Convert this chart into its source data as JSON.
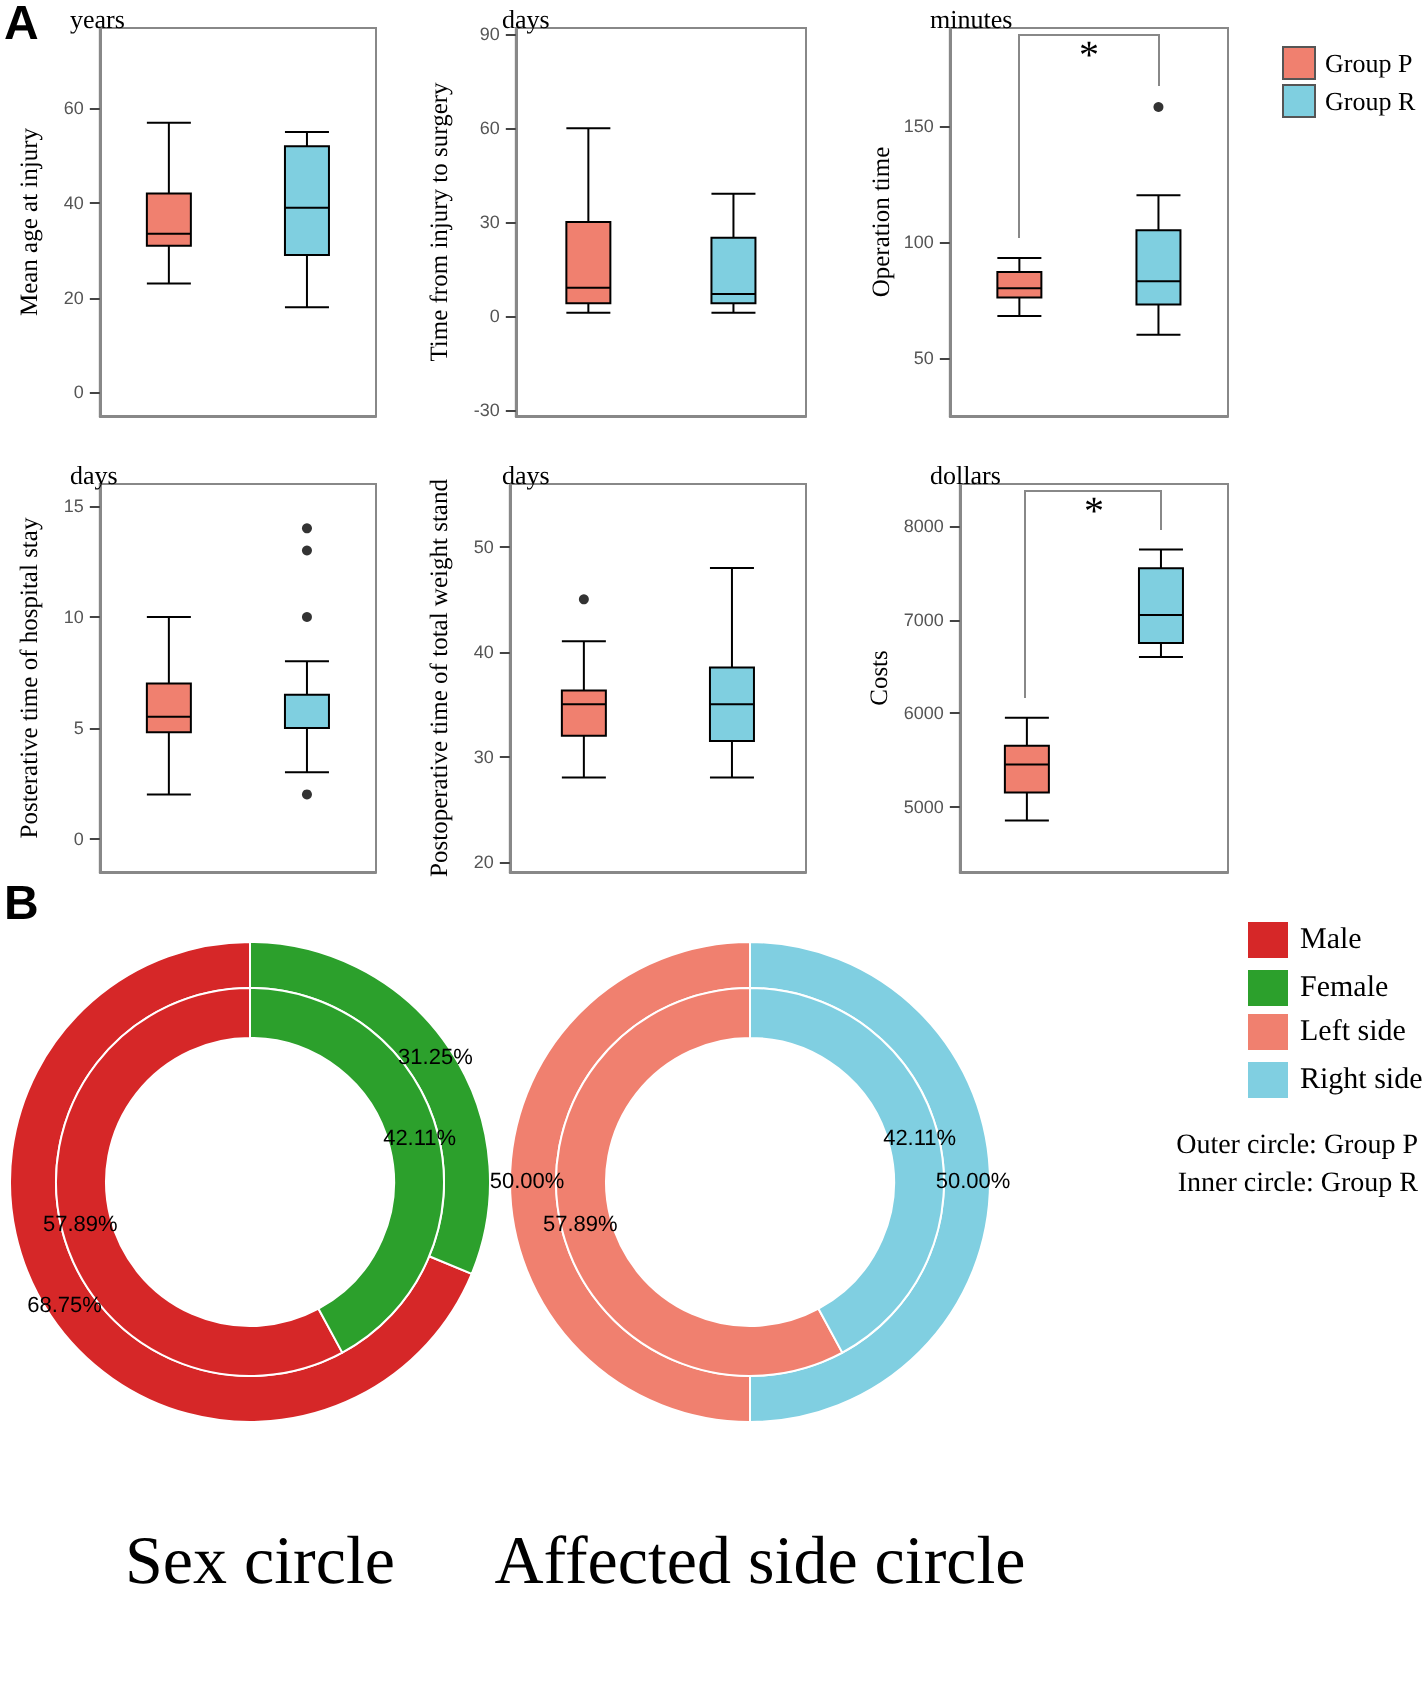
{
  "chart_data": [
    {
      "type": "box",
      "title": "years",
      "ylabel": "Mean age at injury",
      "categories": [
        null,
        null
      ],
      "ylim": [
        -5,
        77
      ],
      "yticks": [
        0,
        20,
        40,
        60
      ],
      "series": [
        {
          "color": "#f0806f",
          "boxes": [
            {
              "low": 23,
              "q1": 31,
              "median": 33.5,
              "q3": 42,
              "high": 57
            },
            null
          ]
        },
        {
          "color": "#7fcfe0",
          "boxes": [
            null,
            {
              "low": 18,
              "q1": 29,
              "median": 39,
              "q3": 52,
              "high": 55
            }
          ]
        }
      ]
    },
    {
      "type": "box",
      "title": "days",
      "ylabel": "Time from injury to surgery",
      "categories": [
        null,
        null
      ],
      "ylim": [
        -32,
        92
      ],
      "yticks": [
        -30,
        0,
        30,
        60,
        90
      ],
      "series": [
        {
          "color": "#f0806f",
          "boxes": [
            {
              "low": 1,
              "q1": 4,
              "median": 9,
              "q3": 30,
              "high": 60
            },
            null
          ]
        },
        {
          "color": "#7fcfe0",
          "boxes": [
            null,
            {
              "low": 1,
              "q1": 4,
              "median": 7,
              "q3": 25,
              "high": 39
            }
          ]
        }
      ]
    },
    {
      "type": "box",
      "title": "minutes",
      "ylabel": "Operation time",
      "categories": [
        null,
        null
      ],
      "ylim": [
        25,
        192
      ],
      "yticks": [
        50,
        100,
        150
      ],
      "legend": "right",
      "annotations": [
        "*"
      ],
      "series": [
        {
          "name": "Group P",
          "color": "#f0806f",
          "boxes": [
            {
              "low": 68,
              "q1": 76,
              "median": 80,
              "q3": 87,
              "high": 93
            },
            null
          ]
        },
        {
          "name": "Group R",
          "color": "#7fcfe0",
          "boxes": [
            null,
            {
              "low": 60,
              "q1": 73,
              "median": 83,
              "q3": 105,
              "high": 120,
              "outliers": [
                158
              ]
            }
          ]
        }
      ]
    },
    {
      "type": "box",
      "title": "days",
      "ylabel": "Posterative time of hospital stay",
      "categories": [
        null,
        null
      ],
      "ylim": [
        -1.5,
        16
      ],
      "yticks": [
        0,
        5,
        10,
        15
      ],
      "series": [
        {
          "color": "#f0806f",
          "boxes": [
            {
              "low": 2,
              "q1": 4.8,
              "median": 5.5,
              "q3": 7,
              "high": 10
            },
            null
          ]
        },
        {
          "color": "#7fcfe0",
          "boxes": [
            null,
            {
              "low": 3,
              "q1": 5,
              "median": 5,
              "q3": 6.5,
              "high": 8,
              "outliers": [
                2,
                10,
                13,
                14
              ]
            }
          ]
        }
      ]
    },
    {
      "type": "box",
      "title": "days",
      "ylabel": "Postoperative time of total weight stand",
      "categories": [
        null,
        null
      ],
      "ylim": [
        19,
        56
      ],
      "yticks": [
        20,
        30,
        40,
        50
      ],
      "series": [
        {
          "color": "#f0806f",
          "boxes": [
            {
              "low": 28,
              "q1": 32,
              "median": 35,
              "q3": 36.3,
              "high": 41,
              "outliers": [
                45
              ]
            },
            null
          ]
        },
        {
          "color": "#7fcfe0",
          "boxes": [
            null,
            {
              "low": 28,
              "q1": 31.5,
              "median": 35,
              "q3": 38.5,
              "high": 48
            }
          ]
        }
      ]
    },
    {
      "type": "box",
      "title": "dollars",
      "ylabel": "Costs",
      "categories": [
        null,
        null
      ],
      "ylim": [
        4300,
        8450
      ],
      "yticks": [
        5000,
        6000,
        7000,
        8000
      ],
      "annotations": [
        "*"
      ],
      "series": [
        {
          "color": "#f0806f",
          "boxes": [
            {
              "low": 4850,
              "q1": 5150,
              "median": 5450,
              "q3": 5650,
              "high": 5950
            },
            null
          ]
        },
        {
          "color": "#7fcfe0",
          "boxes": [
            null,
            {
              "low": 6600,
              "q1": 6750,
              "median": 7050,
              "q3": 7550,
              "high": 7750
            }
          ]
        }
      ]
    },
    {
      "type": "donut",
      "title": "Sex circle",
      "categories": [
        "Male",
        "Female"
      ],
      "colors": [
        "#d62728",
        "#2ca02c"
      ],
      "legend": "right",
      "annotations": [
        "A",
        "B"
      ],
      "series": [
        {
          "values": [
            68.75,
            31.25
          ],
          "value_labels": [
            "68.75%",
            "31.25%"
          ]
        },
        {
          "values": [
            57.89,
            42.11
          ],
          "value_labels": [
            "57.89%",
            "42.11%"
          ]
        }
      ]
    },
    {
      "type": "donut",
      "title": "Affected side circle",
      "categories": [
        "Left side",
        "Right side"
      ],
      "colors": [
        "#f0806f",
        "#80cfe1"
      ],
      "legend": "right",
      "annotations": [
        "Outer circle: Group P",
        "Inner circle: Group R"
      ],
      "series": [
        {
          "values": [
            50,
            50
          ],
          "value_labels": [
            "50.00%",
            "50.00%"
          ]
        },
        {
          "values": [
            57.89,
            42.11
          ],
          "value_labels": [
            "57.89%",
            "42.11%"
          ]
        }
      ]
    }
  ]
}
